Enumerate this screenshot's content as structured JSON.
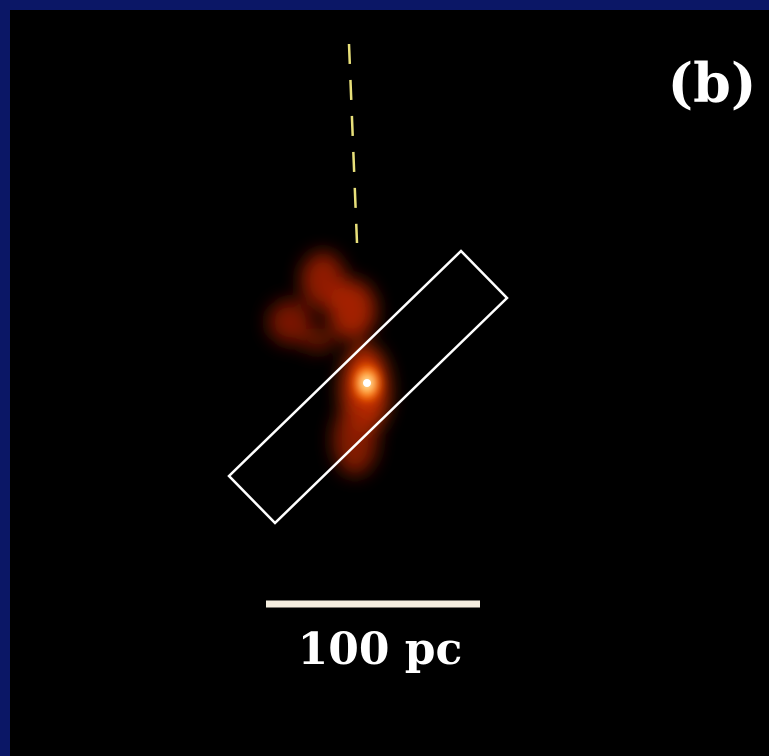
{
  "panel_label": "(b)",
  "scale_bar": {
    "label": "100 pc"
  }
}
